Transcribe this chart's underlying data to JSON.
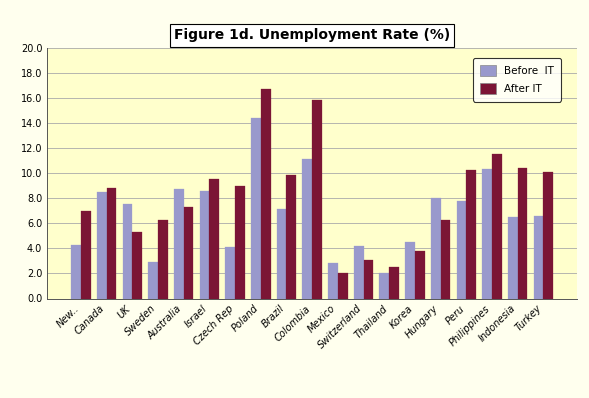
{
  "title": "Figure 1d. Unemployment Rate (%)",
  "categories": [
    "New..",
    "Canada",
    "UK",
    "Sweden",
    "Australia",
    "Israel",
    "Czech Rep",
    "Poland",
    "Brazil",
    "Colombia",
    "Mexico",
    "Switzerland",
    "Thailand",
    "Korea",
    "Hungary",
    "Peru",
    "Philippines",
    "Indonesia",
    "Turkey"
  ],
  "before_it": [
    4.3,
    8.5,
    7.5,
    2.9,
    8.7,
    8.6,
    4.1,
    14.4,
    7.1,
    11.1,
    2.8,
    4.2,
    2.0,
    4.5,
    8.0,
    7.8,
    10.3,
    6.5,
    6.6
  ],
  "after_it": [
    7.0,
    8.8,
    5.3,
    6.3,
    7.3,
    9.5,
    9.0,
    16.7,
    9.85,
    15.8,
    2.0,
    3.1,
    2.5,
    3.8,
    6.3,
    10.25,
    11.55,
    10.4,
    10.1
  ],
  "before_color": "#9999cc",
  "after_color": "#7b1535",
  "background_color": "#ffffee",
  "plot_bg_color": "#ffffcc",
  "ylim": [
    0,
    20.0
  ],
  "yticks": [
    0.0,
    2.0,
    4.0,
    6.0,
    8.0,
    10.0,
    12.0,
    14.0,
    16.0,
    18.0,
    20.0
  ],
  "legend_before": "Before  IT",
  "legend_after": "After IT",
  "title_fontsize": 10,
  "tick_fontsize": 7,
  "bar_width": 0.38
}
